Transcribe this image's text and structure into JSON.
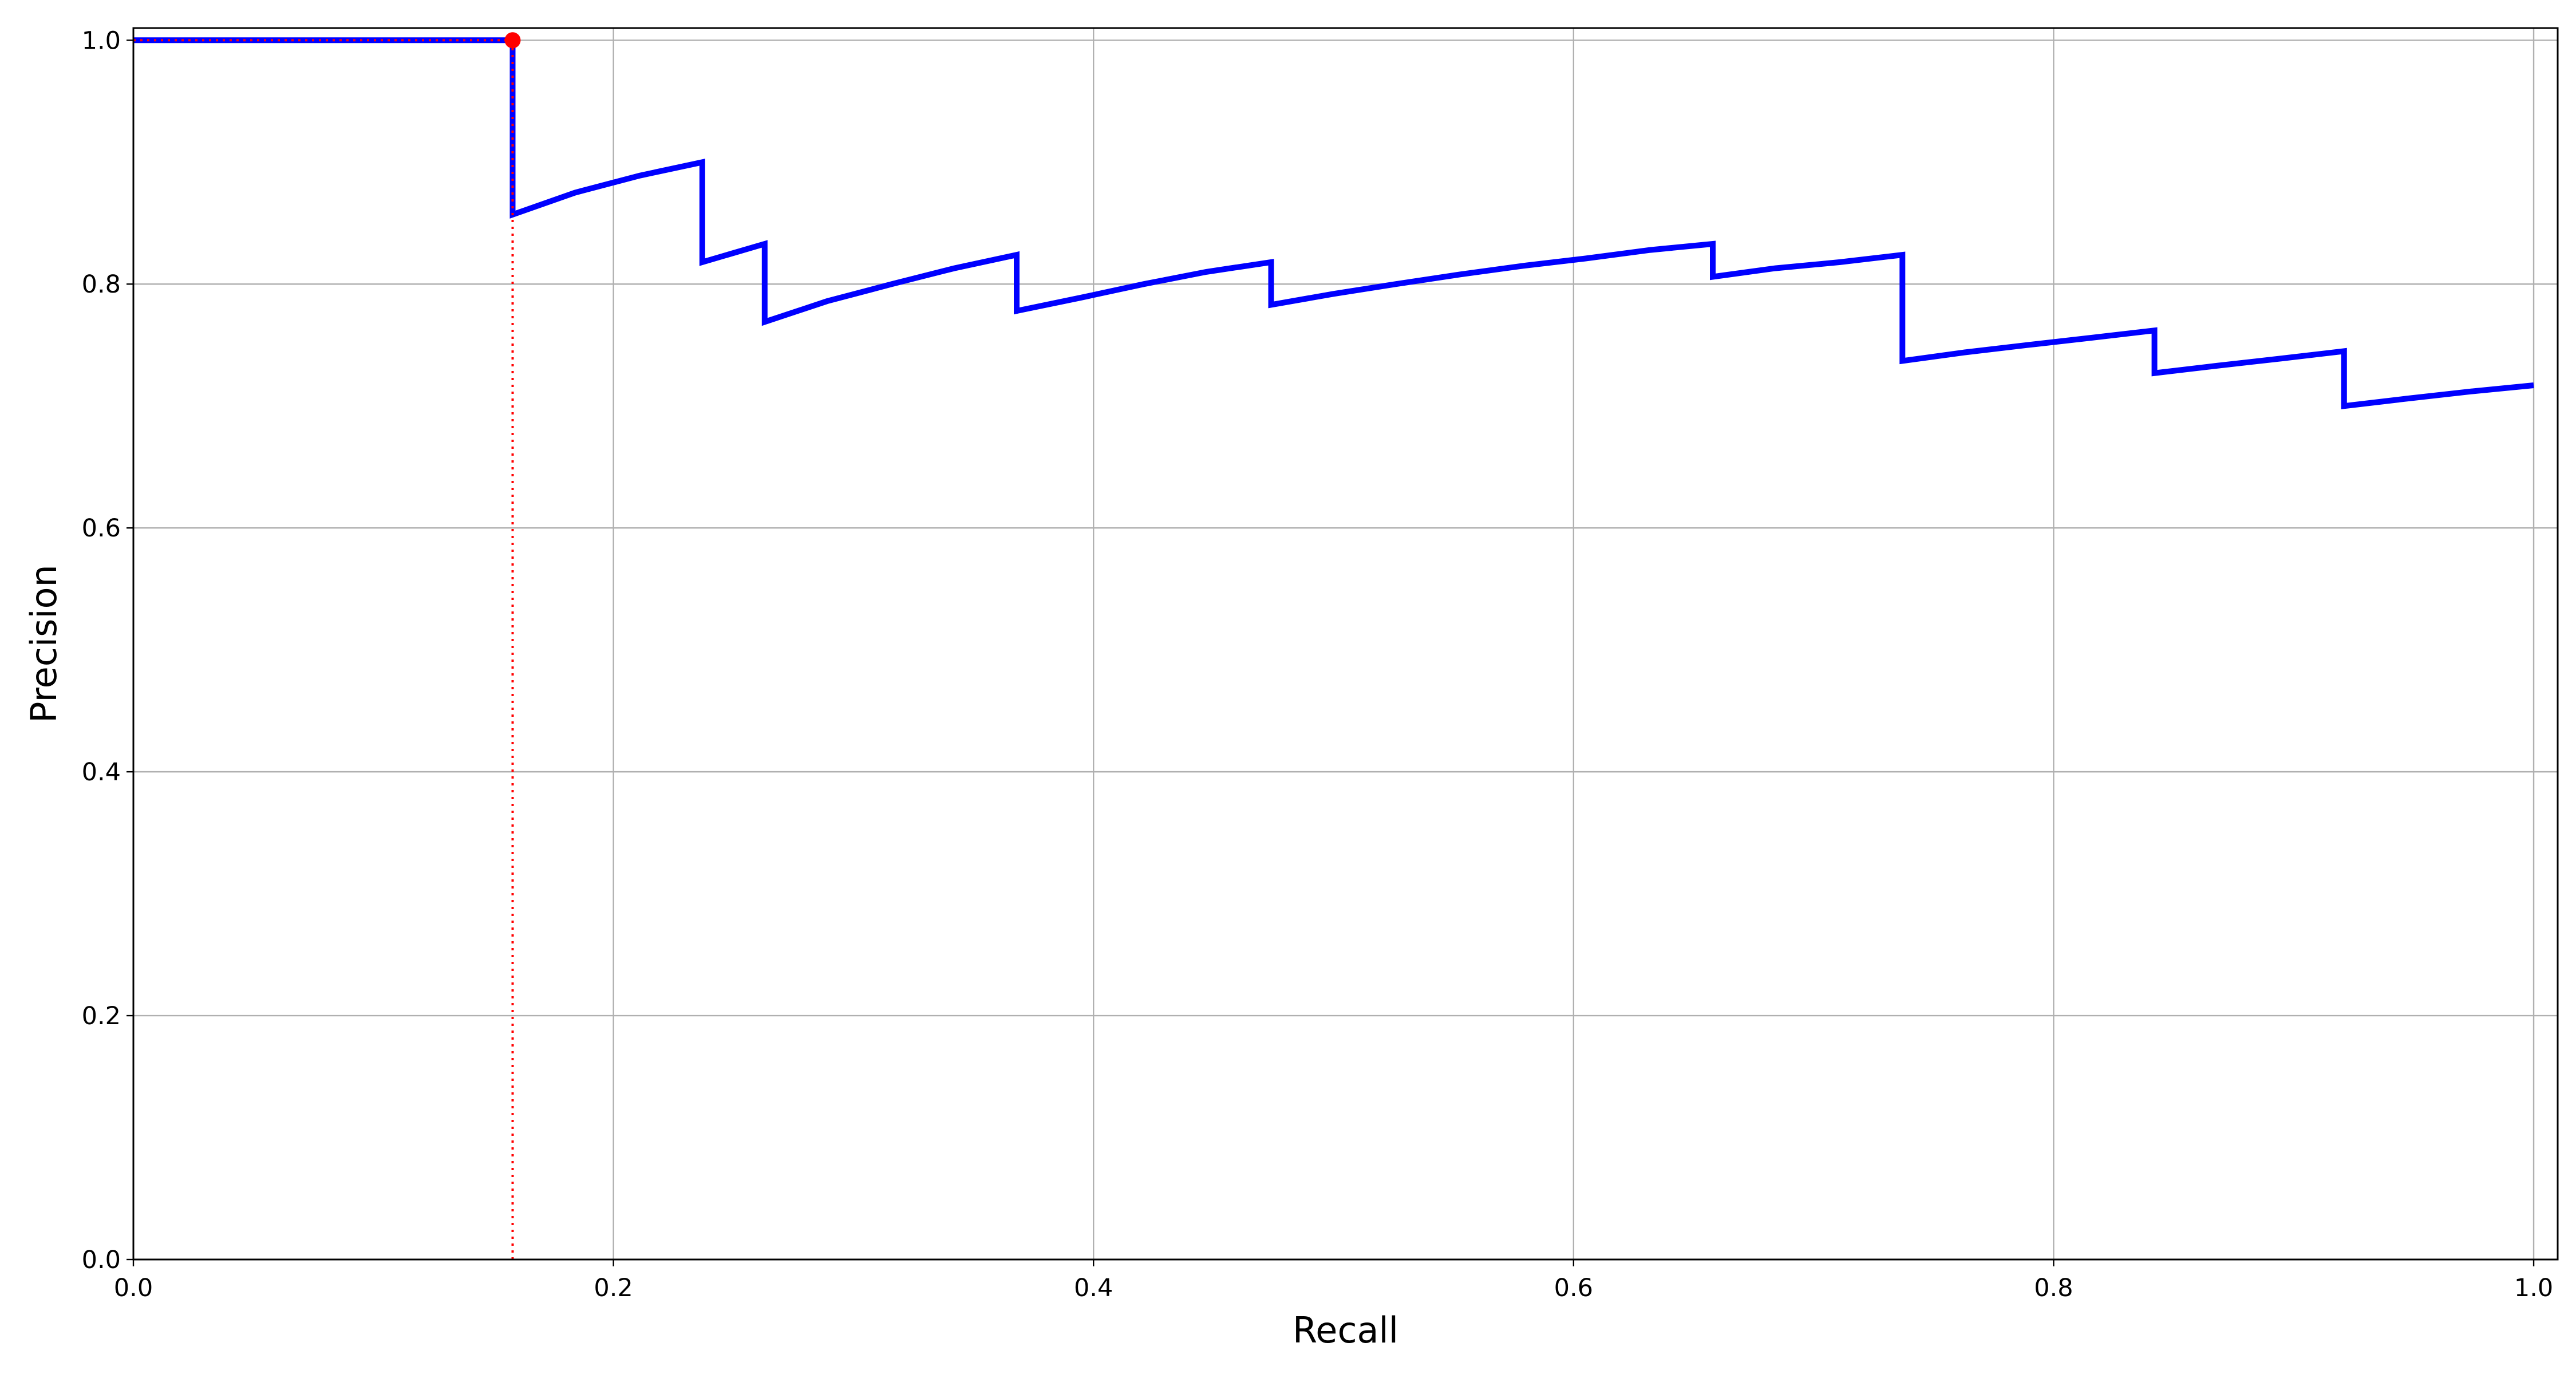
{
  "chart_data": {
    "type": "line",
    "title": "",
    "xlabel": "Recall",
    "ylabel": "Precision",
    "xlim": [
      0.0,
      1.01
    ],
    "ylim": [
      0.0,
      1.01
    ],
    "grid": true,
    "x_ticks": [
      0.0,
      0.2,
      0.4,
      0.6,
      0.8,
      1.0
    ],
    "x_tick_labels": [
      "0.0",
      "0.2",
      "0.4",
      "0.6",
      "0.8",
      "1.0"
    ],
    "y_ticks": [
      0.0,
      0.2,
      0.4,
      0.6,
      0.8,
      1.0
    ],
    "y_tick_labels": [
      "0.0",
      "0.2",
      "0.4",
      "0.6",
      "0.8",
      "1.0"
    ],
    "series": [
      {
        "color": "#0000ff",
        "x": [
          0.0,
          0.158,
          0.158,
          0.184,
          0.211,
          0.237,
          0.237,
          0.263,
          0.263,
          0.289,
          0.316,
          0.342,
          0.368,
          0.368,
          0.395,
          0.421,
          0.447,
          0.474,
          0.474,
          0.5,
          0.526,
          0.553,
          0.579,
          0.605,
          0.632,
          0.658,
          0.658,
          0.684,
          0.711,
          0.737,
          0.737,
          0.763,
          0.789,
          0.816,
          0.842,
          0.842,
          0.868,
          0.895,
          0.921,
          0.921,
          0.947,
          0.974,
          1.0
        ],
        "y": [
          1.0,
          1.0,
          0.857,
          0.875,
          0.889,
          0.9,
          0.818,
          0.833,
          0.769,
          0.786,
          0.8,
          0.813,
          0.824,
          0.778,
          0.789,
          0.8,
          0.81,
          0.818,
          0.783,
          0.792,
          0.8,
          0.808,
          0.815,
          0.821,
          0.828,
          0.833,
          0.806,
          0.813,
          0.818,
          0.824,
          0.737,
          0.744,
          0.75,
          0.756,
          0.762,
          0.727,
          0.733,
          0.739,
          0.745,
          0.7,
          0.706,
          0.712,
          0.717
        ]
      }
    ],
    "highlight_point": {
      "x": 0.158,
      "y": 1.0,
      "color": "#ff0000"
    },
    "reference_lines": {
      "color": "#ff0000",
      "style": "dotted",
      "vertical_at_x": 0.158,
      "horizontal_at_y": 1.0
    }
  }
}
